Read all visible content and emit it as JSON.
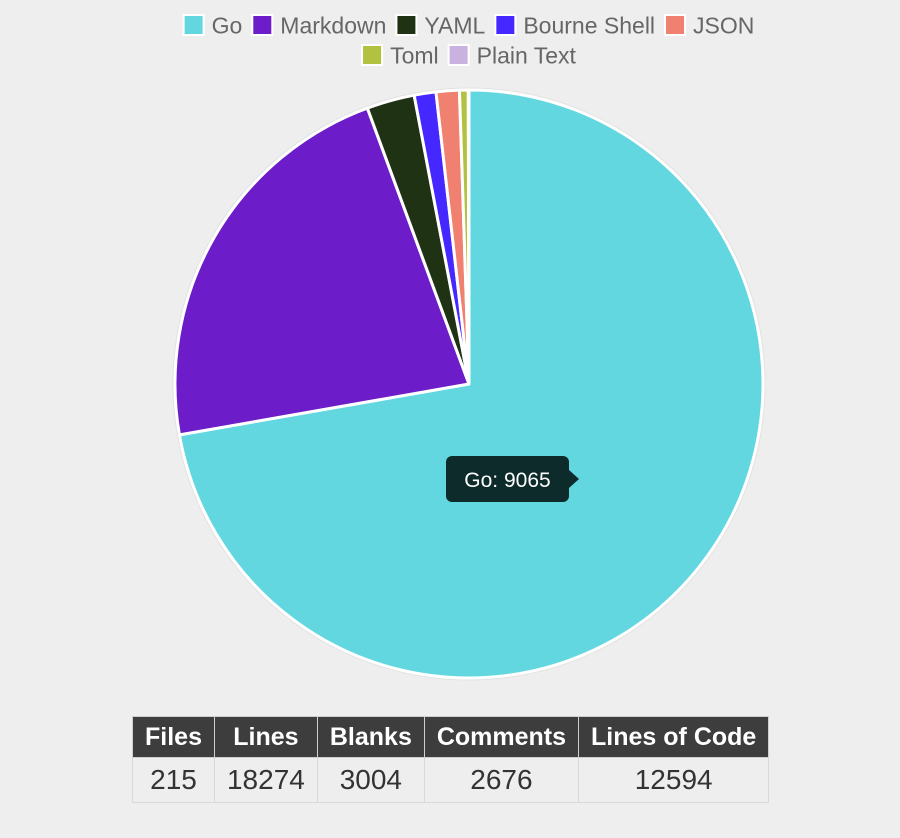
{
  "chart_data": {
    "type": "pie",
    "labels": [
      "Go",
      "Markdown",
      "YAML",
      "Bourne Shell",
      "JSON",
      "Toml",
      "Plain Text"
    ],
    "values": [
      9065,
      2780,
      330,
      150,
      160,
      60,
      5
    ],
    "colors": [
      "#63d7e0",
      "#6c1cc8",
      "#1f3314",
      "#4527ff",
      "#f0806f",
      "#b2c140",
      "#c9b2e0"
    ],
    "legend_position": "top",
    "tooltip": {
      "label": "Go",
      "value": 9065,
      "text": "Go: 9065"
    }
  },
  "table": {
    "headers": [
      "Files",
      "Lines",
      "Blanks",
      "Comments",
      "Lines of Code"
    ],
    "rows": [
      [
        "215",
        "18274",
        "3004",
        "2676",
        "12594"
      ]
    ]
  }
}
